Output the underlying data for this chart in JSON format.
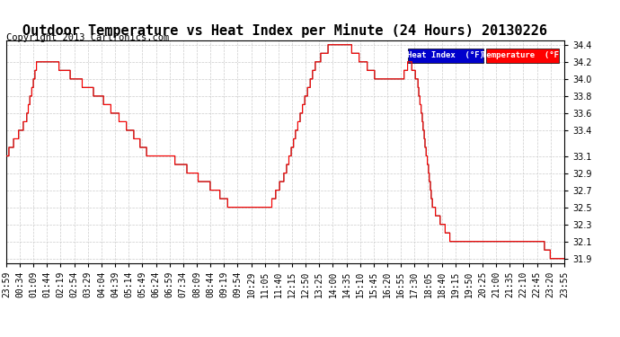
{
  "title": "Outdoor Temperature vs Heat Index per Minute (24 Hours) 20130226",
  "copyright": "Copyright 2013 Cartronics.com",
  "ylabel": "",
  "xlabel": "",
  "bg_color": "#ffffff",
  "grid_color": "#cccccc",
  "temp_color": "#ff0000",
  "heat_color": "#555555",
  "ylim_min": 31.85,
  "ylim_max": 34.45,
  "yticks": [
    31.9,
    32.1,
    32.3,
    32.5,
    32.7,
    32.9,
    33.1,
    33.4,
    33.6,
    33.8,
    34.0,
    34.2,
    34.4
  ],
  "legend_heat_bg": "#0000cc",
  "legend_heat_text": "#ffffff",
  "legend_temp_bg": "#ff0000",
  "legend_temp_text": "#ffffff",
  "title_fontsize": 11,
  "copyright_fontsize": 7.5,
  "tick_fontsize": 7,
  "xtick_labels": [
    "23:59",
    "00:34",
    "01:09",
    "01:44",
    "02:19",
    "02:54",
    "03:29",
    "04:04",
    "04:39",
    "05:14",
    "05:49",
    "06:24",
    "06:59",
    "07:34",
    "08:09",
    "08:44",
    "09:19",
    "09:54",
    "10:29",
    "11:05",
    "11:40",
    "12:15",
    "12:50",
    "13:25",
    "14:00",
    "14:35",
    "15:10",
    "15:45",
    "16:20",
    "16:55",
    "17:30",
    "18:05",
    "18:40",
    "19:15",
    "19:50",
    "20:25",
    "21:00",
    "21:35",
    "22:10",
    "22:45",
    "23:20",
    "23:55"
  ],
  "temp_data": [
    33.1,
    33.1,
    33.5,
    34.2,
    34.2,
    34.2,
    34.2,
    34.0,
    33.8,
    33.6,
    33.6,
    33.4,
    33.4,
    33.8,
    33.1,
    33.1,
    33.1,
    33.1,
    32.9,
    32.9,
    32.7,
    32.7,
    32.7,
    32.5,
    32.5,
    32.5,
    32.5,
    32.5,
    32.5,
    32.5,
    32.5,
    32.7,
    32.7,
    32.9,
    33.6,
    34.2,
    34.4,
    34.4,
    34.4,
    34.4,
    34.2,
    34.2,
    34.4,
    34.4,
    34.2,
    34.2,
    34.0,
    33.8,
    33.8,
    34.0,
    34.0,
    34.0,
    32.5,
    32.5,
    32.5,
    32.5,
    32.1,
    32.1,
    32.1,
    32.1,
    32.1,
    32.1,
    32.1,
    32.1,
    32.1,
    32.1,
    32.1,
    32.1,
    32.1,
    32.1,
    32.1,
    32.1,
    32.1,
    32.1,
    32.1,
    32.1,
    32.1,
    32.1,
    32.1,
    32.1,
    32.1,
    32.1,
    31.9,
    31.9,
    31.9,
    31.9,
    31.9,
    31.9,
    31.9,
    31.9,
    31.9,
    31.9,
    31.9,
    31.9,
    31.9,
    31.9,
    31.9,
    31.9
  ],
  "heat_data": [
    33.1,
    33.1,
    33.5,
    34.2,
    34.2,
    34.2,
    34.2,
    34.0,
    33.8,
    33.6,
    33.6,
    33.4,
    33.4,
    33.8,
    33.1,
    33.1,
    33.1,
    33.1,
    32.9,
    32.9,
    32.7,
    32.7,
    32.7,
    32.5,
    32.5,
    32.5,
    32.5,
    32.5,
    32.5,
    32.5,
    32.5,
    32.7,
    32.7,
    32.9,
    33.6,
    34.2,
    34.4,
    34.4,
    34.4,
    34.4,
    34.2,
    34.2,
    34.4,
    34.4,
    34.2,
    34.2,
    34.0,
    33.8,
    33.8,
    34.0,
    34.0,
    34.0,
    32.5,
    32.5,
    32.5,
    32.5,
    32.1,
    32.1,
    32.1,
    32.1,
    32.1,
    32.1,
    32.1,
    32.1,
    32.1,
    32.1,
    32.1,
    32.1,
    32.1,
    32.1,
    32.1,
    32.1,
    32.1,
    32.1,
    32.1,
    32.1,
    32.1,
    32.1,
    32.1,
    32.1,
    32.1,
    32.1,
    31.9,
    31.9,
    31.9,
    31.9,
    31.9,
    31.9,
    31.9,
    31.9,
    31.9,
    31.9,
    31.9,
    31.9,
    31.9,
    31.9,
    31.9,
    31.9
  ]
}
